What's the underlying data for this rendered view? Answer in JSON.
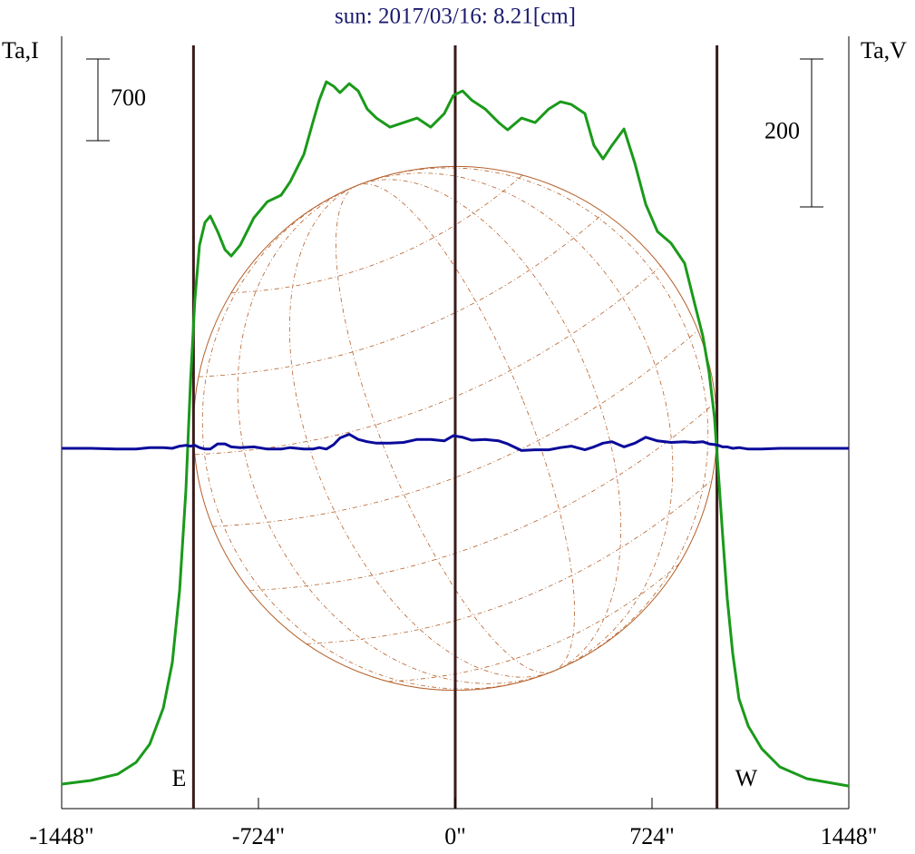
{
  "chart_data": {
    "type": "line",
    "title": "sun: 2017/03/16: 8.21[cm]",
    "y_label": "Ta,I",
    "y2_label": "Ta,V",
    "x": [
      -1448,
      -1341,
      -1241,
      -1174,
      -1124,
      -1074,
      -1041,
      -1014,
      -991,
      -974,
      -958,
      -941,
      -921,
      -901,
      -874,
      -847,
      -824,
      -791,
      -741,
      -691,
      -641,
      -607,
      -557,
      -524,
      -500,
      -474,
      -447,
      -424,
      -390,
      -357,
      -324,
      -290,
      -240,
      -190,
      -140,
      -90,
      -40,
      -7,
      27,
      60,
      110,
      160,
      193,
      244,
      294,
      344,
      387,
      427,
      477,
      510,
      544,
      577,
      621,
      661,
      701,
      744,
      794,
      844,
      877,
      911,
      934,
      954,
      968,
      984,
      1001,
      1021,
      1044,
      1078,
      1128,
      1194,
      1294,
      1448
    ],
    "series": [
      {
        "name": "I",
        "color": "#1a9a1a",
        "values": [
          210,
          241,
          296,
          397,
          552,
          863,
          1252,
          1874,
          2730,
          3663,
          4363,
          4830,
          5024,
          5079,
          4947,
          4791,
          4737,
          4830,
          5063,
          5203,
          5258,
          5374,
          5608,
          5880,
          6074,
          6230,
          6191,
          6137,
          6214,
          6152,
          5997,
          5919,
          5841,
          5880,
          5919,
          5841,
          5958,
          6113,
          6152,
          6074,
          5997,
          5880,
          5818,
          5919,
          5880,
          5997,
          6059,
          6036,
          5958,
          5686,
          5569,
          5686,
          5826,
          5531,
          5180,
          4947,
          4846,
          4674,
          4363,
          4052,
          3741,
          3352,
          2886,
          2341,
          1797,
          1330,
          941,
          708,
          513,
          358,
          257,
          194
        ]
      },
      {
        "name": "V",
        "color": "#0a0a9a",
        "axis": "y2",
        "values": [
          0,
          0,
          -1,
          -1,
          1,
          1,
          0,
          3,
          4,
          3,
          4,
          1,
          -1,
          -1,
          6,
          6,
          2,
          1,
          2,
          -1,
          -1,
          1,
          -1,
          -1,
          1,
          -1,
          5,
          14,
          19,
          12,
          9,
          7,
          7,
          8,
          12,
          12,
          10,
          17,
          15,
          11,
          12,
          10,
          6,
          -3,
          -2,
          -2,
          1,
          3,
          -2,
          2,
          7,
          9,
          2,
          7,
          15,
          10,
          8,
          9,
          8,
          9,
          6,
          5,
          4,
          2,
          2,
          0,
          1,
          -1,
          -1,
          0,
          0,
          0
        ]
      }
    ],
    "xlim": [
      -1448,
      1448
    ],
    "xticks": [
      {
        "value": -1448,
        "label": "-1448\""
      },
      {
        "value": -724,
        "label": "-724\""
      },
      {
        "value": 0,
        "label": "0\""
      },
      {
        "value": 724,
        "label": "724\""
      },
      {
        "value": 1448,
        "label": "1448\""
      }
    ],
    "ylim": [
      0,
      6760
    ],
    "y2lim": [
      -487,
      579
    ],
    "scale_bar_left": 700,
    "scale_bar_right": 200,
    "markers": [
      -963,
      0,
      963
    ],
    "limb_labels": [
      "E",
      "W"
    ]
  }
}
